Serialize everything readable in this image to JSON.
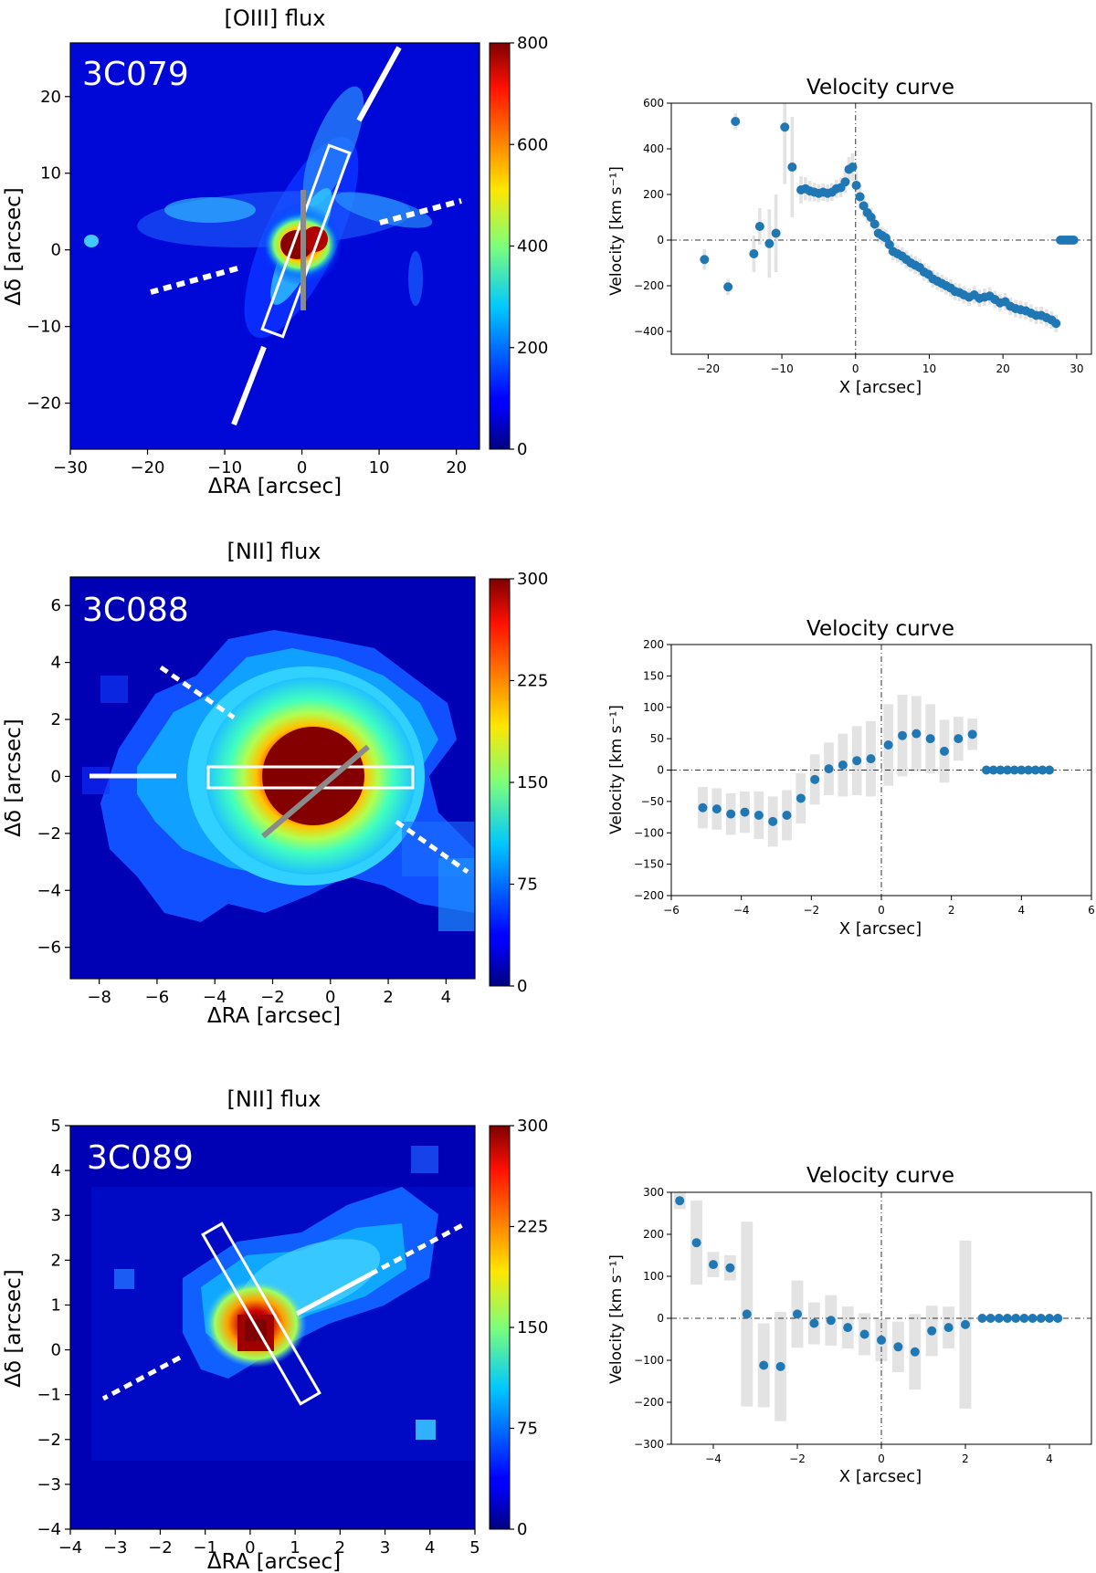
{
  "chart_data": [
    {
      "type": "heatmap",
      "title": "[OIII] flux",
      "object_label": "3C079",
      "xlabel": "ΔRA [arcsec]",
      "ylabel": "Δδ [arcsec]",
      "xlim": [
        -30,
        23
      ],
      "ylim": [
        -26,
        27
      ],
      "xticks": [
        -30,
        -20,
        -10,
        0,
        10,
        20
      ],
      "yticks": [
        -20,
        -10,
        0,
        10,
        20
      ],
      "colorbar": {
        "colormap": "jet",
        "range": [
          0,
          800
        ],
        "ticks": [
          0,
          200,
          400,
          600,
          800
        ]
      }
    },
    {
      "type": "scatter",
      "title": "Velocity curve",
      "xlabel": "X [arcsec]",
      "ylabel": "Velocity [km s⁻¹]",
      "xlim": [
        -25,
        32
      ],
      "ylim": [
        -500,
        600
      ],
      "xticks": [
        -20,
        -10,
        0,
        10,
        20,
        30
      ],
      "yticks": [
        -400,
        -200,
        0,
        200,
        400,
        600
      ],
      "marker_color": "#1f77b4",
      "x": [
        -20.5,
        -17.3,
        -16.3,
        -13.8,
        -13.0,
        -11.7,
        -10.8,
        -9.6,
        -8.6,
        -7.4,
        -6.8,
        -6.2,
        -5.6,
        -5.0,
        -4.4,
        -3.8,
        -3.2,
        -2.6,
        -2.0,
        -1.4,
        -0.9,
        -0.4,
        0.1,
        0.6,
        1.1,
        1.6,
        2.1,
        2.6,
        3.1,
        3.6,
        4.1,
        4.6,
        5.1,
        5.7,
        6.3,
        6.9,
        7.5,
        8.1,
        8.7,
        9.3,
        9.9,
        10.5,
        11.1,
        11.7,
        12.3,
        12.9,
        13.5,
        14.1,
        14.7,
        15.4,
        16.1,
        16.8,
        17.5,
        18.2,
        18.9,
        19.6,
        20.3,
        21.0,
        21.7,
        22.4,
        23.1,
        23.8,
        24.5,
        25.2,
        25.9,
        26.6,
        27.2,
        27.8,
        28.1,
        28.4,
        28.7,
        29.0,
        29.3,
        29.6
      ],
      "y": [
        -85,
        -205,
        520,
        -60,
        60,
        -15,
        30,
        495,
        320,
        220,
        225,
        215,
        210,
        205,
        210,
        205,
        210,
        225,
        230,
        255,
        310,
        320,
        240,
        190,
        150,
        120,
        100,
        70,
        30,
        20,
        10,
        -20,
        -50,
        -60,
        -70,
        -85,
        -100,
        -110,
        -120,
        -140,
        -150,
        -170,
        -180,
        -190,
        -200,
        -210,
        -225,
        -230,
        -240,
        -250,
        -240,
        -255,
        -250,
        -245,
        -260,
        -275,
        -270,
        -290,
        -300,
        -305,
        -310,
        -320,
        -330,
        -330,
        -340,
        -350,
        -365,
        0,
        0,
        0,
        0,
        0,
        0,
        0
      ],
      "error_bar_halfwidths": [
        45,
        35,
        35,
        80,
        80,
        150,
        170,
        250,
        220,
        60,
        50,
        45,
        40,
        38,
        38,
        38,
        38,
        40,
        42,
        48,
        55,
        60,
        55,
        50,
        48,
        45,
        42,
        40,
        40,
        38,
        38,
        38,
        38,
        38,
        38,
        38,
        38,
        38,
        38,
        38,
        38,
        38,
        38,
        38,
        38,
        38,
        38,
        38,
        38,
        38,
        38,
        38,
        38,
        38,
        38,
        38,
        38,
        38,
        38,
        38,
        38,
        38,
        38,
        38,
        38,
        38,
        38,
        0,
        0,
        0,
        0,
        0,
        0,
        0
      ],
      "reference_lines": {
        "x": 0,
        "y": 0
      }
    },
    {
      "type": "heatmap",
      "title": "[NII] flux",
      "object_label": "3C088",
      "xlabel": "ΔRA [arcsec]",
      "ylabel": "Δδ [arcsec]",
      "xlim": [
        -9,
        5
      ],
      "ylim": [
        -7.1,
        7
      ],
      "xticks": [
        -8,
        -6,
        -4,
        -2,
        0,
        2,
        4
      ],
      "yticks": [
        -6,
        -4,
        -2,
        0,
        2,
        4,
        6
      ],
      "colorbar": {
        "colormap": "jet",
        "range": [
          0,
          300
        ],
        "ticks": [
          0,
          75,
          150,
          225,
          300
        ]
      }
    },
    {
      "type": "scatter",
      "title": "Velocity curve",
      "xlabel": "X [arcsec]",
      "ylabel": "Velocity [km s⁻¹]",
      "xlim": [
        -6,
        6
      ],
      "ylim": [
        -200,
        200
      ],
      "xticks": [
        -6,
        -4,
        -2,
        0,
        2,
        4,
        6
      ],
      "yticks": [
        -200,
        -150,
        -100,
        -50,
        0,
        50,
        100,
        150,
        200
      ],
      "marker_color": "#1f77b4",
      "x": [
        -5.1,
        -4.7,
        -4.3,
        -3.9,
        -3.5,
        -3.1,
        -2.7,
        -2.3,
        -1.9,
        -1.5,
        -1.1,
        -0.7,
        -0.3,
        0.2,
        0.6,
        1.0,
        1.4,
        1.8,
        2.2,
        2.6,
        3.0,
        3.2,
        3.4,
        3.6,
        3.8,
        4.0,
        4.2,
        4.4,
        4.6,
        4.8
      ],
      "y": [
        -60,
        -62,
        -70,
        -67,
        -72,
        -82,
        -72,
        -45,
        -15,
        2,
        8,
        15,
        18,
        40,
        55,
        58,
        50,
        30,
        50,
        57,
        0,
        0,
        0,
        0,
        0,
        0,
        0,
        0,
        0,
        0
      ],
      "error_bar_halfwidths": [
        33,
        33,
        33,
        33,
        38,
        40,
        40,
        40,
        40,
        42,
        50,
        55,
        60,
        65,
        65,
        60,
        55,
        50,
        35,
        25,
        0,
        0,
        0,
        0,
        0,
        0,
        0,
        0,
        0,
        0
      ],
      "reference_lines": {
        "x": 0,
        "y": 0
      }
    },
    {
      "type": "heatmap",
      "title": "[NII] flux",
      "object_label": "3C089",
      "xlabel": "ΔRA [arcsec]",
      "ylabel": "Δδ [arcsec]",
      "xlim": [
        -4,
        5
      ],
      "ylim": [
        -4,
        5
      ],
      "xticks": [
        -4,
        -3,
        -2,
        -1,
        0,
        1,
        2,
        3,
        4,
        5
      ],
      "yticks": [
        -4,
        -3,
        -2,
        -1,
        0,
        1,
        2,
        3,
        4,
        5
      ],
      "colorbar": {
        "colormap": "jet",
        "range": [
          0,
          300
        ],
        "ticks": [
          0,
          75,
          150,
          225,
          300
        ]
      }
    },
    {
      "type": "scatter",
      "title": "Velocity curve",
      "xlabel": "X [arcsec]",
      "ylabel": "Velocity [km s⁻¹]",
      "xlim": [
        -5,
        5
      ],
      "ylim": [
        -300,
        300
      ],
      "xticks": [
        -4,
        -2,
        0,
        2,
        4
      ],
      "yticks": [
        -300,
        -200,
        -100,
        0,
        100,
        200,
        300
      ],
      "marker_color": "#1f77b4",
      "x": [
        -4.8,
        -4.4,
        -4.0,
        -3.6,
        -3.2,
        -2.8,
        -2.4,
        -2.0,
        -1.6,
        -1.2,
        -0.8,
        -0.4,
        0.0,
        0.4,
        0.8,
        1.2,
        1.6,
        2.0,
        2.4,
        2.6,
        2.8,
        3.0,
        3.2,
        3.4,
        3.6,
        3.8,
        4.0,
        4.2
      ],
      "y": [
        280,
        180,
        128,
        120,
        10,
        -112,
        -115,
        10,
        -12,
        -5,
        -22,
        -38,
        -52,
        -68,
        -80,
        -30,
        -22,
        -15,
        0,
        0,
        0,
        0,
        0,
        0,
        0,
        0,
        0,
        0
      ],
      "error_bar_halfwidths": [
        20,
        100,
        30,
        30,
        220,
        100,
        130,
        80,
        50,
        60,
        50,
        50,
        50,
        60,
        90,
        60,
        50,
        200,
        0,
        0,
        0,
        0,
        0,
        0,
        0,
        0,
        0,
        0
      ],
      "reference_lines": {
        "x": 0,
        "y": 0
      }
    }
  ]
}
